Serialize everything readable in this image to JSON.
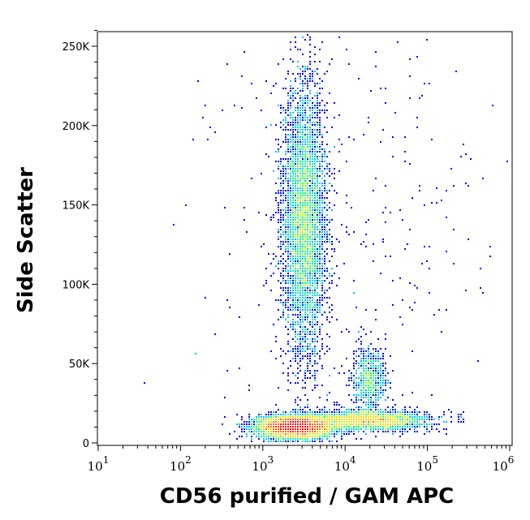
{
  "chart_data": {
    "type": "heatmap",
    "subtype": "flow cytometry density dot plot",
    "xlabel": "CD56 purified / GAM APC",
    "ylabel": "Side Scatter",
    "x_scale": "log",
    "xlim": [
      10,
      1000000
    ],
    "ylim": [
      0,
      260000
    ],
    "x_ticks": [
      {
        "value": 10,
        "base": "10",
        "exp": "1"
      },
      {
        "value": 100,
        "base": "10",
        "exp": "2"
      },
      {
        "value": 1000,
        "base": "10",
        "exp": "3"
      },
      {
        "value": 10000,
        "base": "10",
        "exp": "4"
      },
      {
        "value": 100000,
        "base": "10",
        "exp": "5"
      },
      {
        "value": 1000000,
        "base": "10",
        "exp": "6"
      }
    ],
    "y_ticks": [
      {
        "value": 0,
        "label": "0"
      },
      {
        "value": 50000,
        "label": "50K"
      },
      {
        "value": 100000,
        "label": "100K"
      },
      {
        "value": 150000,
        "label": "150K"
      },
      {
        "value": 200000,
        "label": "200K"
      },
      {
        "value": 250000,
        "label": "250K"
      }
    ],
    "grid": false,
    "colormap": [
      "#0000ff",
      "#00bfff",
      "#00ff80",
      "#c0ff00",
      "#ffd000",
      "#ff6000",
      "#ff0000"
    ],
    "populations": [
      {
        "x_center": 2500,
        "x_spread_decades": 0.22,
        "y_center": 10000,
        "y_spread": 3500,
        "relative_events": 6000
      },
      {
        "x_center": 20000,
        "x_spread_decades": 0.35,
        "y_center": 14000,
        "y_spread": 3000,
        "relative_events": 2500
      },
      {
        "x_center": 3200,
        "x_spread_decades": 0.13,
        "y_center": 140000,
        "y_spread": 42000,
        "relative_events": 5000
      },
      {
        "x_center": 20000,
        "x_spread_decades": 0.1,
        "y_center": 40000,
        "y_spread": 9000,
        "relative_events": 800
      },
      {
        "x_center": 10000,
        "x_spread_decades": 0.9,
        "y_center": 130000,
        "y_spread": 90000,
        "relative_events": 400
      }
    ]
  }
}
